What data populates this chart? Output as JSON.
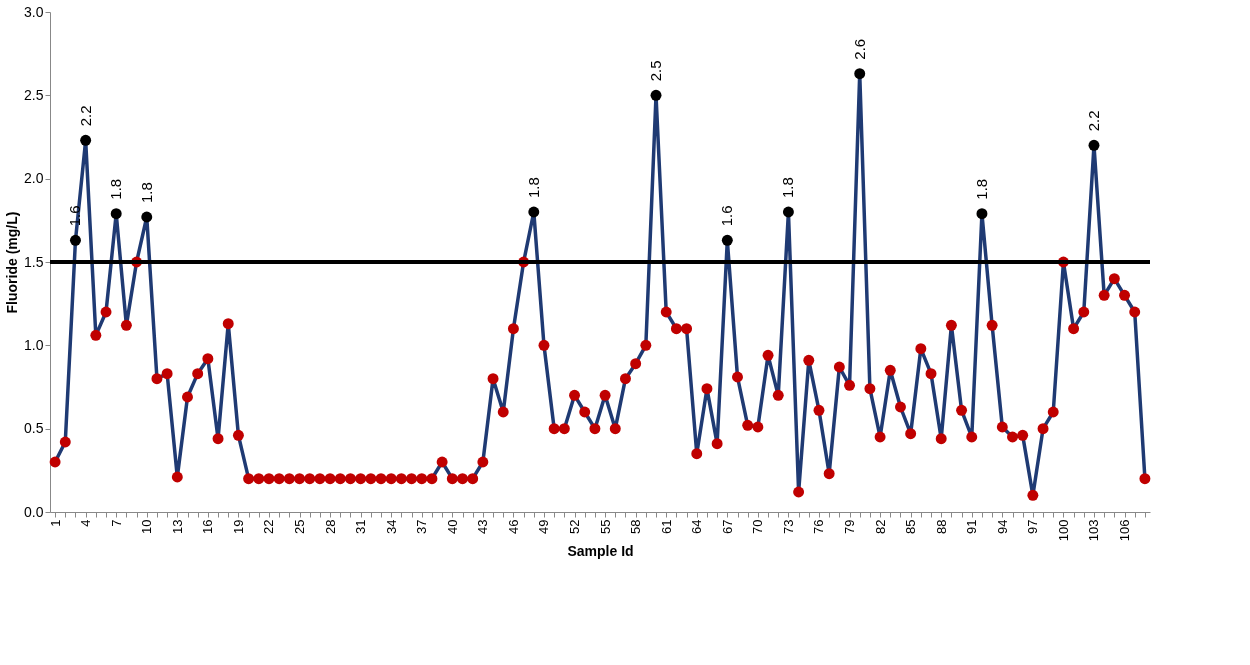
{
  "chart_data": {
    "type": "line",
    "xlabel": "Sample Id",
    "ylabel": "Fluoride (mg/L)",
    "categories": [
      "1",
      null,
      null,
      "4",
      null,
      null,
      "7",
      null,
      null,
      "10",
      null,
      null,
      "13",
      null,
      null,
      "16",
      null,
      null,
      "19",
      null,
      null,
      "22",
      null,
      null,
      "25",
      null,
      null,
      "28",
      null,
      null,
      "31",
      null,
      null,
      "34",
      null,
      null,
      "37",
      null,
      null,
      "40",
      null,
      null,
      "43",
      null,
      null,
      "46",
      null,
      null,
      "49",
      null,
      null,
      "52",
      null,
      null,
      "55",
      null,
      null,
      "58",
      null,
      null,
      "61",
      null,
      null,
      "64",
      null,
      null,
      "67",
      null,
      null,
      "70",
      null,
      null,
      "73",
      null,
      null,
      "76",
      null,
      null,
      "79",
      null,
      null,
      "82",
      null,
      null,
      "85",
      null,
      null,
      "88",
      null,
      null,
      "91",
      null,
      null,
      "94",
      null,
      null,
      "97",
      null,
      null,
      "100",
      null,
      null,
      "103",
      null,
      null,
      "106",
      null,
      null
    ],
    "series": [
      {
        "color": "#1f3a73",
        "values": [
          0.3,
          0.42,
          1.63,
          2.23,
          1.06,
          1.2,
          1.79,
          1.12,
          1.5,
          1.77,
          0.8,
          0.83,
          0.21,
          0.69,
          0.83,
          0.92,
          0.44,
          1.13,
          0.46,
          0.2,
          0.2,
          0.2,
          0.2,
          0.2,
          0.2,
          0.2,
          0.2,
          0.2,
          0.2,
          0.2,
          0.2,
          0.2,
          0.2,
          0.2,
          0.2,
          0.2,
          0.2,
          0.2,
          0.3,
          0.2,
          0.2,
          0.2,
          0.3,
          0.8,
          0.6,
          1.1,
          1.5,
          1.8,
          1.0,
          0.5,
          0.5,
          0.7,
          0.6,
          0.5,
          0.7,
          0.5,
          0.8,
          0.89,
          1.0,
          2.5,
          1.2,
          1.1,
          1.1,
          0.35,
          0.74,
          0.41,
          1.63,
          0.81,
          0.52,
          0.51,
          0.94,
          0.7,
          1.8,
          0.12,
          0.91,
          0.61,
          0.23,
          0.87,
          0.76,
          2.63,
          0.74,
          0.45,
          0.85,
          0.63,
          0.47,
          0.98,
          0.83,
          0.44,
          1.12,
          0.61,
          0.45,
          1.79,
          1.12,
          0.51,
          0.45,
          0.46,
          0.1,
          0.5,
          0.6,
          1.5,
          1.1,
          1.2,
          2.2,
          1.3,
          1.4,
          1.3,
          1.2,
          0.2
        ],
        "colors": [
          "#c00000",
          "#c00000",
          "#000000",
          "#000000",
          "#c00000",
          "#c00000",
          "#000000",
          "#c00000",
          "#c00000",
          "#000000",
          "#c00000",
          "#c00000",
          "#c00000",
          "#c00000",
          "#c00000",
          "#c00000",
          "#c00000",
          "#c00000",
          "#c00000",
          "#c00000",
          "#c00000",
          "#c00000",
          "#c00000",
          "#c00000",
          "#c00000",
          "#c00000",
          "#c00000",
          "#c00000",
          "#c00000",
          "#c00000",
          "#c00000",
          "#c00000",
          "#c00000",
          "#c00000",
          "#c00000",
          "#c00000",
          "#c00000",
          "#c00000",
          "#c00000",
          "#c00000",
          "#c00000",
          "#c00000",
          "#c00000",
          "#c00000",
          "#c00000",
          "#c00000",
          "#c00000",
          "#000000",
          "#c00000",
          "#c00000",
          "#c00000",
          "#c00000",
          "#c00000",
          "#c00000",
          "#c00000",
          "#c00000",
          "#c00000",
          "#c00000",
          "#c00000",
          "#000000",
          "#c00000",
          "#c00000",
          "#c00000",
          "#c00000",
          "#c00000",
          "#c00000",
          "#000000",
          "#c00000",
          "#c00000",
          "#c00000",
          "#c00000",
          "#c00000",
          "#000000",
          "#c00000",
          "#c00000",
          "#c00000",
          "#c00000",
          "#c00000",
          "#c00000",
          "#000000",
          "#c00000",
          "#c00000",
          "#c00000",
          "#c00000",
          "#c00000",
          "#c00000",
          "#c00000",
          "#c00000",
          "#c00000",
          "#c00000",
          "#c00000",
          "#000000",
          "#c00000",
          "#c00000",
          "#c00000",
          "#c00000",
          "#c00000",
          "#c00000",
          "#c00000",
          "#c00000",
          "#c00000",
          "#c00000",
          "#000000",
          "#c00000",
          "#c00000",
          "#c00000",
          "#c00000",
          "#c00000"
        ],
        "value_labels": [
          null,
          null,
          "1.6",
          "2.2",
          null,
          null,
          "1.8",
          null,
          null,
          "1.8",
          null,
          null,
          null,
          null,
          null,
          null,
          null,
          null,
          null,
          null,
          null,
          null,
          null,
          null,
          null,
          null,
          null,
          null,
          null,
          null,
          null,
          null,
          null,
          null,
          null,
          null,
          null,
          null,
          null,
          null,
          null,
          null,
          null,
          null,
          null,
          null,
          null,
          "1.8",
          null,
          null,
          null,
          null,
          null,
          null,
          null,
          null,
          null,
          null,
          null,
          "2.5",
          null,
          null,
          null,
          null,
          null,
          null,
          "1.6",
          null,
          null,
          null,
          null,
          null,
          "1.8",
          null,
          null,
          null,
          null,
          null,
          null,
          "2.6",
          null,
          null,
          null,
          null,
          null,
          null,
          null,
          null,
          null,
          null,
          null,
          "1.8",
          null,
          null,
          null,
          null,
          null,
          null,
          null,
          null,
          null,
          null,
          "2.2",
          null,
          null,
          null,
          null,
          null
        ]
      }
    ],
    "ylim": [
      0,
      3
    ],
    "yticks": [
      {
        "value": 0,
        "label": "0.0"
      },
      0.5,
      {
        "value": 1,
        "label": "1.0"
      },
      1.5,
      {
        "value": 2,
        "label": "2.0"
      },
      2.5,
      {
        "value": 3,
        "label": "3.0"
      }
    ],
    "ref_lines": [
      {
        "axis": "y",
        "value": 1.5,
        "label": null,
        "color": "#000000"
      }
    ],
    "marker": "circle",
    "line_style": "solid",
    "grid": false
  }
}
